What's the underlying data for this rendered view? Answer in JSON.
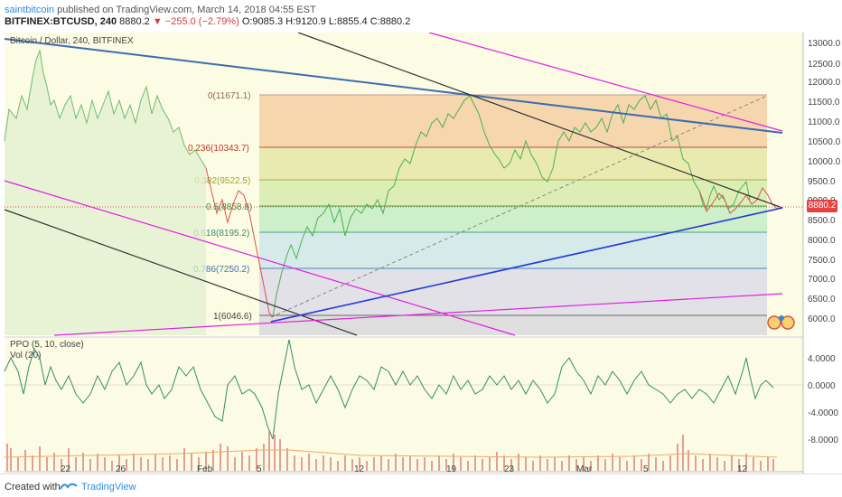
{
  "header": {
    "author": "saintbitcoin",
    "published_text": "published on TradingView.com, March 14, 2018 04:55 EST",
    "symbol_line_prefix": "BITFINEX:BTCUSD, 240",
    "close_value": "8880.2",
    "change": "▼ −255.0 (−2.79%)",
    "ohlc": "O:9085.3  H:9120.9  L:8855.4  C:8880.2"
  },
  "main_pane": {
    "title": "Bitcoin / Dollar, 240, BITFINEX",
    "last_price_tag": "8880.2",
    "price_axis_labels": [
      "13000.0",
      "12500.0",
      "12000.0",
      "11500.0",
      "11000.0",
      "10500.0",
      "10000.0",
      "9500.0",
      "9000.0",
      "8500.0",
      "8000.0",
      "7500.0",
      "7000.0",
      "6500.0",
      "6000.0"
    ],
    "fib_labels": [
      "0(11671.1)",
      "0.236(10343.7)",
      "0.382(9522.5)",
      "0.5(8858.8)",
      "0.618(8195.2)",
      "0.786(7250.2)",
      "1(6046.6)"
    ]
  },
  "ppo_pane": {
    "title": "PPO (5, 10, close)",
    "vol_title": "Vol (20)",
    "axis_labels": [
      "4.0000",
      "0.0000",
      "-4.0000",
      "-8.0000"
    ]
  },
  "time_axis": {
    "labels": [
      "22",
      "26",
      "Feb",
      "5",
      "12",
      "19",
      "23",
      "Mar",
      "5",
      "12"
    ]
  },
  "footer": {
    "created_with": "Created with",
    "brand": "TradingView"
  },
  "colors": {
    "background": "#fcfbe3",
    "price_up": "#4caf50",
    "price_down": "#e5423f",
    "ppo_line": "#2f8f6b",
    "trend_magenta": "#e020e0",
    "trend_blue": "#2a3fd6",
    "trend_steel": "#3c6cb0",
    "trend_black": "#333333",
    "brand_blue": "#2e8bdc"
  },
  "icons": [
    "tradingview-logo-icon",
    "chart-widget-icon"
  ]
}
